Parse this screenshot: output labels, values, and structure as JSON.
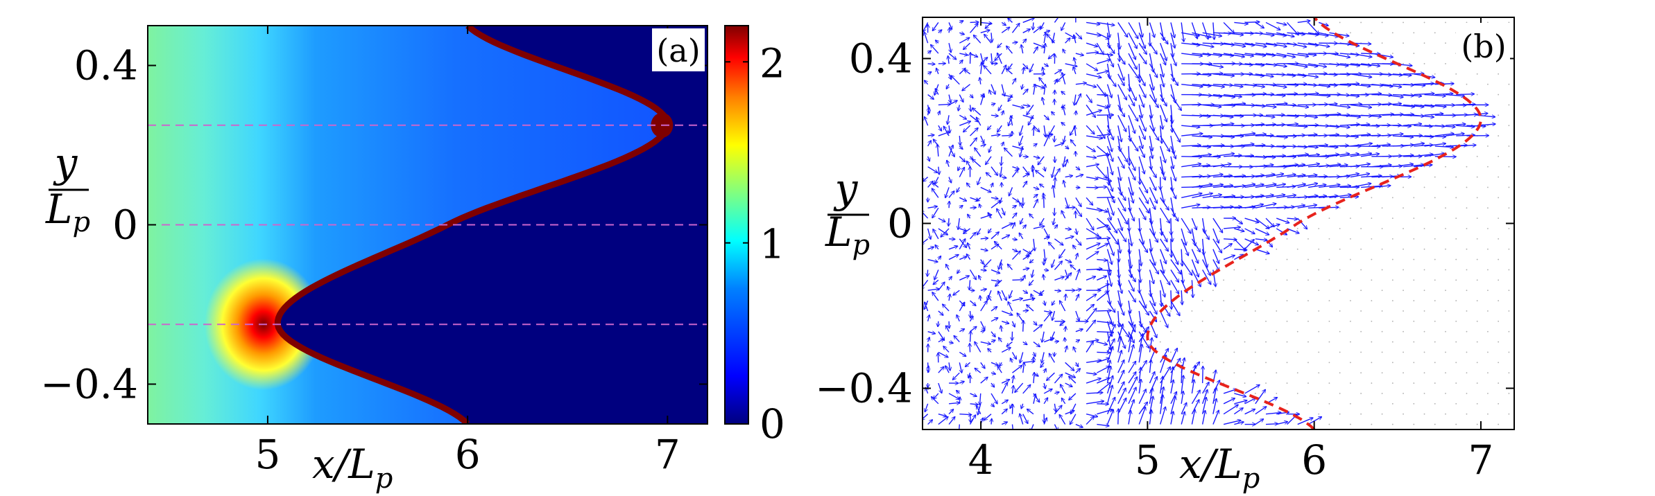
{
  "chart_data": [
    {
      "type": "heatmap",
      "panel_label": "(a)",
      "xlabel": "x/L",
      "xlabel_sub": "p",
      "ylabel_num": "y",
      "ylabel_den": "L",
      "ylabel_sub": "p",
      "xlim": [
        4.4,
        7.2
      ],
      "ylim": [
        -0.5,
        0.5
      ],
      "xticks": [
        5,
        6,
        7
      ],
      "xtick_labels": [
        "5",
        "6",
        "7"
      ],
      "yticks": [
        -0.4,
        0,
        0.4
      ],
      "ytick_labels": [
        "−0.4",
        "0",
        "0.4"
      ],
      "colorbar": {
        "range": [
          0,
          2.2
        ],
        "ticks": [
          0,
          1,
          2
        ],
        "tick_labels": [
          "0",
          "1",
          "2"
        ]
      },
      "interface_curve": {
        "description_points": [
          {
            "x": 6.0,
            "y": -0.5
          },
          {
            "x": 5.05,
            "y": -0.25
          },
          {
            "x": 5.9,
            "y": 0.0
          },
          {
            "x": 7.0,
            "y": 0.25
          },
          {
            "x": 6.0,
            "y": 0.5
          }
        ]
      },
      "dashed_lines_y": [
        -0.25,
        0,
        0.25
      ],
      "hotspots": [
        {
          "x": 5.0,
          "y": -0.25,
          "value": 2.2
        },
        {
          "x": 7.0,
          "y": 0.25,
          "value": 2.2
        }
      ],
      "colors": {
        "dashed": "#cc66cc",
        "interior": "#00007f",
        "interface": "#7f0000"
      }
    },
    {
      "type": "vector-field",
      "panel_label": "(b)",
      "xlabel": "x/L",
      "xlabel_sub": "p",
      "ylabel_num": "y",
      "ylabel_den": "L",
      "ylabel_sub": "p",
      "xlim": [
        3.65,
        7.2
      ],
      "ylim": [
        -0.5,
        0.5
      ],
      "xticks": [
        4,
        5,
        6,
        7
      ],
      "xtick_labels": [
        "4",
        "5",
        "6",
        "7"
      ],
      "yticks": [
        -0.4,
        0,
        0.4
      ],
      "ytick_labels": [
        "−0.4",
        "0",
        "0.4"
      ],
      "interface_curve": {
        "description_points": [
          {
            "x": 6.0,
            "y": -0.5
          },
          {
            "x": 5.0,
            "y": -0.28
          },
          {
            "x": 5.9,
            "y": 0.0
          },
          {
            "x": 7.0,
            "y": 0.25
          },
          {
            "x": 6.0,
            "y": 0.5
          }
        ]
      },
      "colors": {
        "arrows": "#1a1aff",
        "interface": "#e8231c"
      }
    }
  ]
}
